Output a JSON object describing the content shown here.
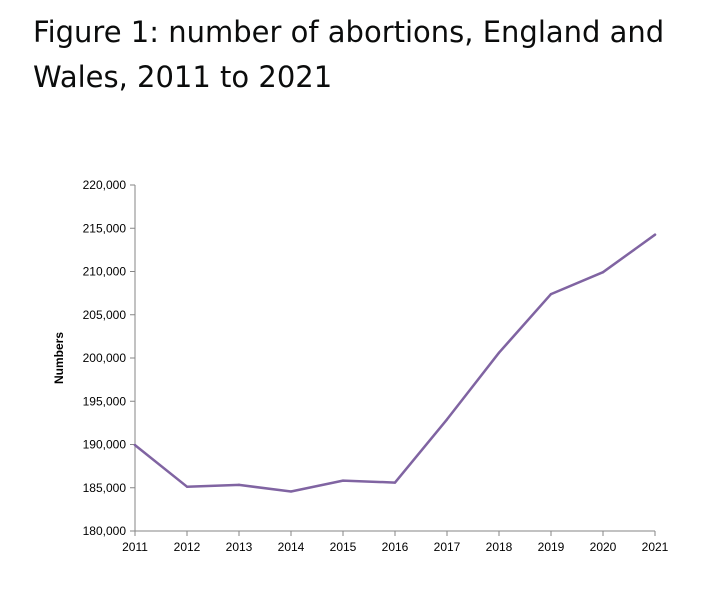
{
  "title": "Figure 1: number of abortions, England and Wales, 2011 to 2021",
  "chart_data": {
    "type": "line",
    "title": "Figure 1: number of abortions, England and Wales, 2011 to 2021",
    "xlabel": "",
    "ylabel": "Numbers",
    "categories": [
      "2011",
      "2012",
      "2013",
      "2014",
      "2015",
      "2016",
      "2017",
      "2018",
      "2019",
      "2020",
      "2021"
    ],
    "series": [
      {
        "color": "#8064a2",
        "values": [
          189931,
          185122,
          185331,
          184571,
          185824,
          185596,
          192900,
          200608,
          207384,
          209917,
          214256
        ]
      }
    ],
    "ylim": [
      180000,
      220000
    ],
    "yticks": [
      180000,
      185000,
      190000,
      195000,
      200000,
      205000,
      210000,
      215000,
      220000
    ],
    "ytick_labels": [
      "180,000",
      "185,000",
      "190,000",
      "195,000",
      "200,000",
      "205,000",
      "210,000",
      "215,000",
      "220,000"
    ],
    "grid": false,
    "legend": "none"
  }
}
